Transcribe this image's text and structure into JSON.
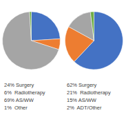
{
  "chart_data": [
    {
      "type": "pie",
      "categories": [
        "24% Surgery",
        "6%  Radiotherapy",
        "69% AS/WW",
        "1%  Other"
      ],
      "values": [
        24,
        6,
        69,
        1
      ],
      "colors": [
        "#4472C4",
        "#ED7D31",
        "#A5A5A5",
        "#70AD47"
      ],
      "legend": "bottom"
    },
    {
      "type": "pie",
      "categories": [
        "62% Surgery",
        "21%  Radiotherapy",
        "15% AS/WW",
        "2%  ADT/Other"
      ],
      "values": [
        62,
        21,
        15,
        2
      ],
      "colors": [
        "#4472C4",
        "#ED7D31",
        "#A5A5A5",
        "#70AD47"
      ],
      "legend": "bottom"
    }
  ]
}
